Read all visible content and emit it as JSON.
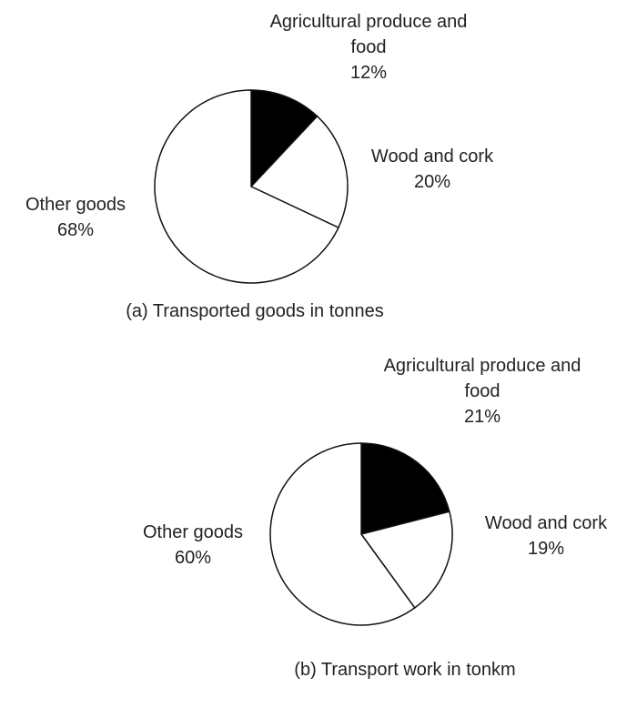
{
  "chart_data": [
    {
      "type": "pie",
      "title": "(a) Transported goods in tonnes",
      "categories": [
        "Agricultural produce and food",
        "Wood and cork",
        "Other goods"
      ],
      "values": [
        12,
        20,
        68
      ],
      "value_labels": [
        "12%",
        "20%",
        "68%"
      ],
      "colors": [
        "#000000",
        "#ffffff",
        "#ffffff"
      ]
    },
    {
      "type": "pie",
      "title": "(b) Transport work in tonkm",
      "categories": [
        "Agricultural produce and food",
        "Wood and cork",
        "Other goods"
      ],
      "values": [
        21,
        19,
        60
      ],
      "value_labels": [
        "21%",
        "19%",
        "60%"
      ],
      "colors": [
        "#000000",
        "#ffffff",
        "#ffffff"
      ]
    }
  ]
}
